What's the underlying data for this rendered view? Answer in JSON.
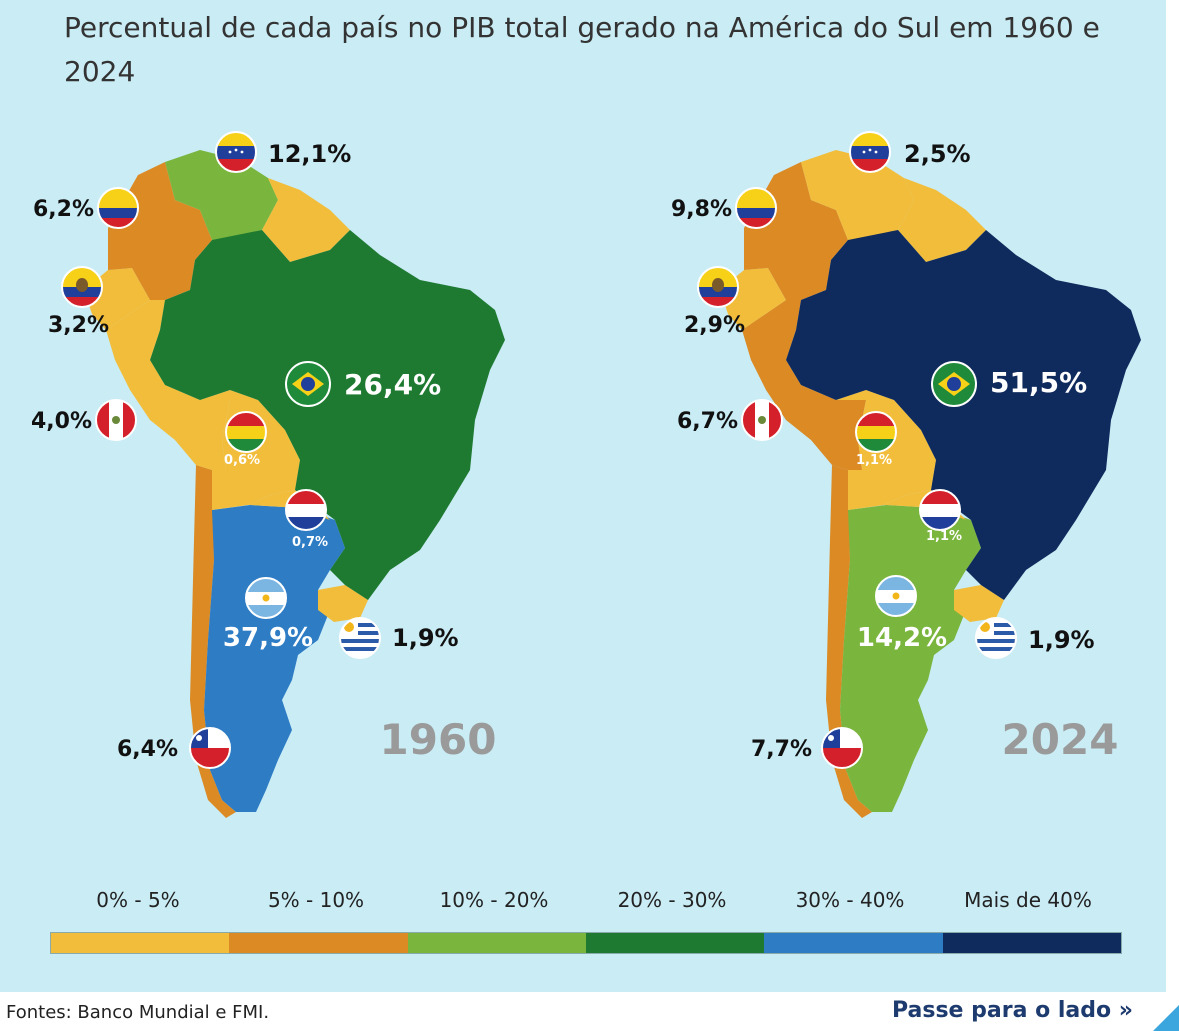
{
  "title": "Percentual de cada país no PIB total gerado na América do Sul em 1960 e 2024",
  "colors": {
    "c0_5": "#f2bd3a",
    "c5_10": "#dc8a24",
    "c10_20": "#7ab53d",
    "c20_30": "#1e7a31",
    "c30_40": "#2e7cc4",
    "c40": "#0f2a5c",
    "background": "#c9ecf5"
  },
  "maps": {
    "m1960": {
      "year": "1960",
      "countries": {
        "venezuela": "12,1%",
        "colombia": "6,2%",
        "ecuador": "3,2%",
        "peru": "4,0%",
        "bolivia": "0,6%",
        "paraguay": "0,7%",
        "brazil": "26,4%",
        "argentina": "37,9%",
        "uruguay": "1,9%",
        "chile": "6,4%"
      }
    },
    "m2024": {
      "year": "2024",
      "countries": {
        "venezuela": "2,5%",
        "colombia": "9,8%",
        "ecuador": "2,9%",
        "peru": "6,7%",
        "bolivia": "1,1%",
        "paraguay": "1,1%",
        "brazil": "51,5%",
        "argentina": "14,2%",
        "uruguay": "1,9%",
        "chile": "7,7%"
      }
    }
  },
  "legend": [
    {
      "label": "0% - 5%",
      "color": "#f2bd3a"
    },
    {
      "label": "5% - 10%",
      "color": "#dc8a24"
    },
    {
      "label": "10% - 20%",
      "color": "#7ab53d"
    },
    {
      "label": "20% - 30%",
      "color": "#1e7a31"
    },
    {
      "label": "30% - 40%",
      "color": "#2e7cc4"
    },
    {
      "label": "Mais de 40%",
      "color": "#0f2a5c"
    }
  ],
  "footer": {
    "sources": "Fontes: Banco Mundial e FMI.",
    "next": "Passe para o lado",
    "next_icon": "double-chevron-right-icon"
  }
}
